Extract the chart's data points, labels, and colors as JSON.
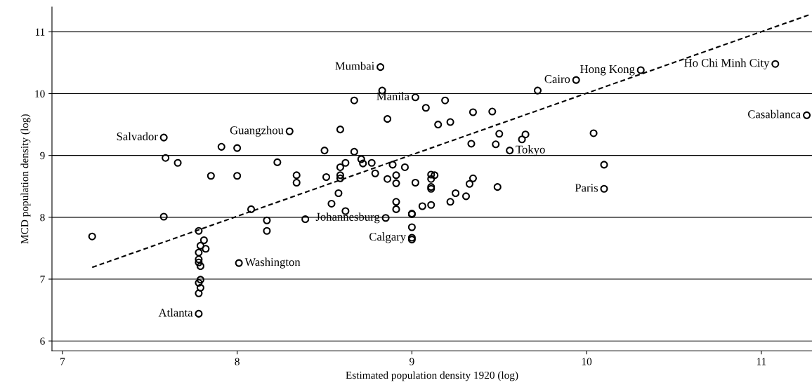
{
  "chart_data": {
    "type": "scatter",
    "xlabel": "Estimated population density 1920 (log)",
    "ylabel": "MCD population density (log)",
    "xlim": [
      6.94,
      11.29
    ],
    "ylim": [
      5.84,
      11.4
    ],
    "xticks": [
      7,
      8,
      9,
      10,
      11
    ],
    "yticks": [
      6,
      7,
      8,
      9,
      10,
      11
    ],
    "grid": "y",
    "series": [
      {
        "type": "scatter",
        "color": "#000000",
        "marker": "circle",
        "x": [
          7.58,
          8.3,
          7.91,
          8.0,
          7.59,
          7.66,
          8.23,
          7.85,
          8.0,
          8.34,
          8.34,
          8.08,
          7.58,
          8.17,
          8.17,
          8.39,
          7.17,
          7.78,
          7.81,
          7.79,
          7.82,
          7.78,
          7.78,
          7.78,
          7.79,
          8.01,
          7.79,
          7.78,
          7.79,
          7.78,
          7.78,
          8.82,
          8.83,
          9.02,
          8.67,
          9.19,
          9.08,
          9.35,
          9.46,
          8.86,
          9.15,
          9.22,
          8.59,
          9.5,
          9.65,
          9.63,
          9.34,
          9.48,
          9.56,
          8.5,
          8.67,
          8.71,
          8.72,
          8.77,
          8.62,
          8.59,
          8.89,
          8.96,
          8.79,
          8.51,
          8.59,
          8.59,
          8.91,
          8.86,
          8.91,
          9.02,
          9.11,
          9.13,
          9.11,
          9.11,
          9.11,
          9.35,
          9.33,
          9.49,
          8.58,
          9.25,
          9.31,
          9.22,
          8.54,
          8.91,
          8.91,
          9.06,
          9.11,
          8.62,
          9.0,
          9.0,
          8.85,
          9.0,
          9.0,
          9.0,
          9.72,
          10.31,
          9.94,
          11.08,
          11.26,
          10.04,
          10.1,
          10.1
        ],
        "values": [
          9.29,
          9.39,
          9.14,
          9.12,
          8.96,
          8.88,
          8.89,
          8.67,
          8.67,
          8.68,
          8.56,
          8.13,
          8.01,
          7.95,
          7.78,
          7.97,
          7.69,
          7.78,
          7.63,
          7.54,
          7.49,
          7.43,
          7.32,
          7.27,
          7.21,
          7.26,
          6.99,
          6.94,
          6.86,
          6.77,
          6.44,
          10.43,
          10.05,
          9.94,
          9.89,
          9.89,
          9.77,
          9.7,
          9.71,
          9.59,
          9.5,
          9.54,
          9.42,
          9.35,
          9.34,
          9.26,
          9.19,
          9.18,
          9.08,
          9.08,
          9.06,
          8.94,
          8.87,
          8.88,
          8.88,
          8.81,
          8.85,
          8.81,
          8.71,
          8.65,
          8.68,
          8.63,
          8.68,
          8.62,
          8.55,
          8.56,
          8.69,
          8.68,
          8.62,
          8.49,
          8.46,
          8.63,
          8.54,
          8.49,
          8.39,
          8.39,
          8.34,
          8.25,
          8.22,
          8.25,
          8.13,
          8.18,
          8.2,
          8.1,
          8.05,
          8.06,
          7.99,
          7.84,
          7.67,
          7.64,
          10.05,
          10.38,
          10.22,
          10.48,
          9.65,
          9.36,
          8.85,
          8.46
        ]
      },
      {
        "type": "line",
        "color": "#000000",
        "line_style": "dashed",
        "x": [
          7.17,
          11.27
        ],
        "values": [
          7.19,
          11.27
        ]
      }
    ],
    "annotations": [
      {
        "text": "Salvador",
        "x": 7.58,
        "y": 9.29
      },
      {
        "text": "Guangzhou",
        "x": 8.3,
        "y": 9.39
      },
      {
        "text": "Washington",
        "x": 8.01,
        "y": 7.26
      },
      {
        "text": "Atlanta",
        "x": 7.78,
        "y": 6.44
      },
      {
        "text": "Mumbai",
        "x": 8.82,
        "y": 10.43
      },
      {
        "text": "Manila",
        "x": 9.02,
        "y": 9.94
      },
      {
        "text": "Tokyo",
        "x": 9.56,
        "y": 9.08
      },
      {
        "text": "Johannesburg",
        "x": 8.85,
        "y": 7.99
      },
      {
        "text": "Calgary",
        "x": 9.0,
        "y": 7.67
      },
      {
        "text": "Cairo",
        "x": 9.94,
        "y": 10.22
      },
      {
        "text": "Hong Kong",
        "x": 10.31,
        "y": 10.38
      },
      {
        "text": "Ho Chi Minh City",
        "x": 11.08,
        "y": 10.48
      },
      {
        "text": "Casablanca",
        "x": 11.26,
        "y": 9.65
      },
      {
        "text": "Paris",
        "x": 10.1,
        "y": 8.46
      }
    ]
  }
}
